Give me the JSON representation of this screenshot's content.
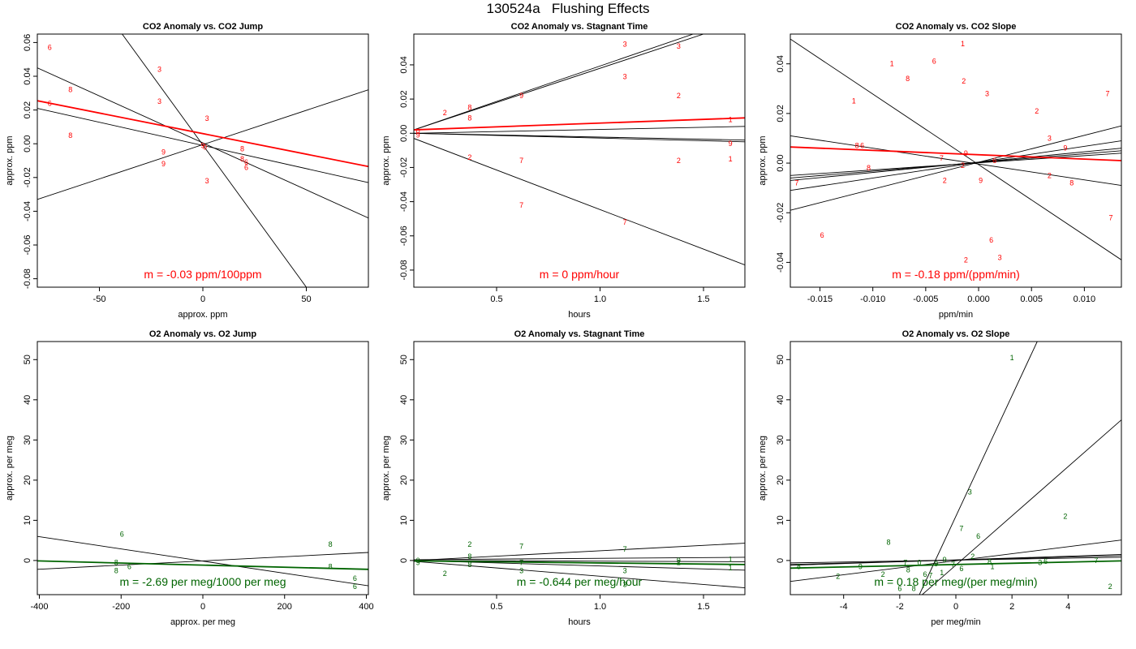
{
  "title": "130524a   Flushing Effects",
  "colors": {
    "co2": "#ff0000",
    "o2": "#006400",
    "frame": "#000000",
    "lines": "#000000"
  },
  "chart_data": [
    {
      "type": "scatter",
      "title": "CO2 Anomaly vs. CO2 Jump",
      "xlabel": "approx. ppm",
      "ylabel": "approx. ppm",
      "xlim": [
        -80,
        80
      ],
      "ylim": [
        -0.085,
        0.065
      ],
      "xticks": [
        -50,
        0,
        50
      ],
      "yticks": [
        -0.08,
        -0.06,
        -0.04,
        -0.02,
        0.0,
        0.02,
        0.04,
        0.06
      ],
      "ytick_labels": [
        "-0.08",
        "-0.06",
        "-0.04",
        "-0.02",
        "0.00",
        "0.02",
        "0.04",
        "0.06"
      ],
      "xtick_labels": [
        "-50",
        "0",
        "50"
      ],
      "annotation": "m = -0.03 ppm/100ppm",
      "color_key": "co2",
      "points": [
        {
          "x": -74,
          "y": 0.057,
          "label": "6"
        },
        {
          "x": -64,
          "y": 0.032,
          "label": "8"
        },
        {
          "x": -74,
          "y": 0.024,
          "label": "6"
        },
        {
          "x": -64,
          "y": 0.005,
          "label": "8"
        },
        {
          "x": -21,
          "y": 0.044,
          "label": "3"
        },
        {
          "x": -21,
          "y": 0.025,
          "label": "3"
        },
        {
          "x": 2,
          "y": 0.015,
          "label": "3"
        },
        {
          "x": -19,
          "y": -0.005,
          "label": "9"
        },
        {
          "x": -19,
          "y": -0.012,
          "label": "9"
        },
        {
          "x": 0,
          "y": -0.001,
          "label": "9"
        },
        {
          "x": 1,
          "y": -0.002,
          "label": "0"
        },
        {
          "x": 2,
          "y": -0.022,
          "label": "3"
        },
        {
          "x": 19,
          "y": -0.003,
          "label": "8"
        },
        {
          "x": 19,
          "y": -0.009,
          "label": "8"
        },
        {
          "x": 21,
          "y": -0.011,
          "label": "6"
        },
        {
          "x": 21,
          "y": -0.014,
          "label": "6"
        }
      ],
      "lines": [
        {
          "x1": -80,
          "y1": 0.045,
          "x2": 80,
          "y2": -0.044
        },
        {
          "x1": -80,
          "y1": 0.021,
          "x2": 80,
          "y2": -0.023
        },
        {
          "x1": -80,
          "y1": -0.033,
          "x2": 80,
          "y2": 0.032
        },
        {
          "x1": -39,
          "y1": 0.065,
          "x2": 50,
          "y2": -0.085
        }
      ],
      "fit": {
        "x1": -80,
        "y1": 0.0255,
        "x2": 80,
        "y2": -0.0135
      }
    },
    {
      "type": "scatter",
      "title": "CO2 Anomaly vs. Stagnant Time",
      "xlabel": "hours",
      "ylabel": "approx. ppm",
      "xlim": [
        0.1,
        1.7
      ],
      "ylim": [
        -0.09,
        0.058
      ],
      "xticks": [
        0.5,
        1.0,
        1.5
      ],
      "yticks": [
        -0.08,
        -0.06,
        -0.04,
        -0.02,
        0.0,
        0.02,
        0.04
      ],
      "ytick_labels": [
        "-0.08",
        "-0.06",
        "-0.04",
        "-0.02",
        "0.00",
        "0.02",
        "0.04"
      ],
      "xtick_labels": [
        "0.5",
        "1.0",
        "1.5"
      ],
      "annotation": "m = 0 ppm/hour",
      "color_key": "co2",
      "points": [
        {
          "x": 0.12,
          "y": 0.001,
          "label": "0"
        },
        {
          "x": 0.12,
          "y": -0.001,
          "label": "9"
        },
        {
          "x": 0.25,
          "y": 0.012,
          "label": "2"
        },
        {
          "x": 0.37,
          "y": 0.015,
          "label": "8"
        },
        {
          "x": 0.37,
          "y": 0.009,
          "label": "8"
        },
        {
          "x": 0.37,
          "y": -0.014,
          "label": "2"
        },
        {
          "x": 0.62,
          "y": 0.022,
          "label": "9"
        },
        {
          "x": 0.62,
          "y": -0.016,
          "label": "7"
        },
        {
          "x": 0.62,
          "y": -0.042,
          "label": "7"
        },
        {
          "x": 1.12,
          "y": 0.052,
          "label": "3"
        },
        {
          "x": 1.12,
          "y": 0.033,
          "label": "3"
        },
        {
          "x": 1.12,
          "y": -0.052,
          "label": "7"
        },
        {
          "x": 1.38,
          "y": 0.051,
          "label": "3"
        },
        {
          "x": 1.38,
          "y": 0.022,
          "label": "2"
        },
        {
          "x": 1.38,
          "y": -0.016,
          "label": "2"
        },
        {
          "x": 1.63,
          "y": 0.008,
          "label": "1"
        },
        {
          "x": 1.63,
          "y": -0.006,
          "label": "9"
        },
        {
          "x": 1.63,
          "y": -0.015,
          "label": "1"
        }
      ],
      "lines": [
        {
          "x1": 0.1,
          "y1": 0.002,
          "x2": 1.45,
          "y2": 0.058
        },
        {
          "x1": 0.1,
          "y1": 0.002,
          "x2": 1.5,
          "y2": 0.058
        },
        {
          "x1": 0.1,
          "y1": 0.0,
          "x2": 1.7,
          "y2": 0.004
        },
        {
          "x1": 0.1,
          "y1": 0.0,
          "x2": 1.7,
          "y2": -0.004
        },
        {
          "x1": 0.1,
          "y1": 0.0,
          "x2": 1.7,
          "y2": -0.005
        },
        {
          "x1": 0.1,
          "y1": -0.003,
          "x2": 1.7,
          "y2": -0.077
        }
      ],
      "fit": {
        "x1": 0.1,
        "y1": 0.002,
        "x2": 1.7,
        "y2": 0.009
      }
    },
    {
      "type": "scatter",
      "title": "CO2 Anomaly vs. CO2 Slope",
      "xlabel": "ppm/min",
      "ylabel": "approx. ppm",
      "xlim": [
        -0.0178,
        0.0135
      ],
      "ylim": [
        -0.05,
        0.052
      ],
      "xticks": [
        -0.015,
        -0.01,
        -0.005,
        0.0,
        0.005,
        0.01
      ],
      "yticks": [
        -0.04,
        -0.02,
        0.0,
        0.02,
        0.04
      ],
      "ytick_labels": [
        "-0.04",
        "-0.02",
        "0.00",
        "0.02",
        "0.04"
      ],
      "xtick_labels": [
        "-0.015",
        "-0.010",
        "-0.005",
        "0.000",
        "0.005",
        "0.010"
      ],
      "annotation": "m = -0.18 ppm/(ppm/min)",
      "color_key": "co2",
      "points": [
        {
          "x": -0.0015,
          "y": 0.048,
          "label": "1"
        },
        {
          "x": -0.0082,
          "y": 0.04,
          "label": "1"
        },
        {
          "x": -0.0042,
          "y": 0.041,
          "label": "6"
        },
        {
          "x": -0.0067,
          "y": 0.034,
          "label": "8"
        },
        {
          "x": -0.0014,
          "y": 0.033,
          "label": "2"
        },
        {
          "x": 0.0008,
          "y": 0.028,
          "label": "3"
        },
        {
          "x": -0.0118,
          "y": 0.025,
          "label": "1"
        },
        {
          "x": 0.0055,
          "y": 0.021,
          "label": "2"
        },
        {
          "x": 0.0122,
          "y": 0.028,
          "label": "7"
        },
        {
          "x": -0.0115,
          "y": 0.007,
          "label": "8"
        },
        {
          "x": -0.011,
          "y": 0.007,
          "label": "6"
        },
        {
          "x": 0.0067,
          "y": 0.01,
          "label": "3"
        },
        {
          "x": 0.0082,
          "y": 0.006,
          "label": "9"
        },
        {
          "x": -0.0035,
          "y": 0.002,
          "label": "7"
        },
        {
          "x": -0.0012,
          "y": 0.004,
          "label": "9"
        },
        {
          "x": -0.0015,
          "y": -0.001,
          "label": "2"
        },
        {
          "x": 0.0015,
          "y": 0.001,
          "label": "6"
        },
        {
          "x": -0.0104,
          "y": -0.002,
          "label": "8"
        },
        {
          "x": -0.0172,
          "y": -0.008,
          "label": "7"
        },
        {
          "x": -0.0032,
          "y": -0.007,
          "label": "2"
        },
        {
          "x": 0.0002,
          "y": -0.007,
          "label": "9"
        },
        {
          "x": 0.0067,
          "y": -0.005,
          "label": "2"
        },
        {
          "x": 0.0088,
          "y": -0.008,
          "label": "8"
        },
        {
          "x": 0.0125,
          "y": -0.022,
          "label": "7"
        },
        {
          "x": -0.0148,
          "y": -0.029,
          "label": "6"
        },
        {
          "x": 0.0012,
          "y": -0.031,
          "label": "6"
        },
        {
          "x": 0.002,
          "y": -0.038,
          "label": "3"
        },
        {
          "x": -0.0012,
          "y": -0.039,
          "label": "2"
        }
      ],
      "lines": [
        {
          "x1": -0.0178,
          "y1": 0.05,
          "x2": 0.0135,
          "y2": -0.039
        },
        {
          "x1": -0.0178,
          "y1": 0.011,
          "x2": 0.0135,
          "y2": -0.009
        },
        {
          "x1": -0.0178,
          "y1": -0.019,
          "x2": 0.0135,
          "y2": 0.015
        },
        {
          "x1": -0.0178,
          "y1": -0.011,
          "x2": 0.0135,
          "y2": 0.009
        },
        {
          "x1": -0.0178,
          "y1": -0.007,
          "x2": 0.0135,
          "y2": 0.006
        },
        {
          "x1": -0.0178,
          "y1": -0.006,
          "x2": 0.0135,
          "y2": 0.005
        },
        {
          "x1": -0.0178,
          "y1": -0.005,
          "x2": 0.0135,
          "y2": 0.004
        }
      ],
      "fit": {
        "x1": -0.0178,
        "y1": 0.0065,
        "x2": 0.0135,
        "y2": 0.001
      }
    },
    {
      "type": "scatter",
      "title": "O2 Anomaly vs. O2 Jump",
      "xlabel": "approx. per meg",
      "ylabel": "approx. per meg",
      "xlim": [
        -405,
        405
      ],
      "ylim": [
        -8.5,
        54.5
      ],
      "xticks": [
        -400,
        -200,
        0,
        200,
        400
      ],
      "yticks": [
        0,
        10,
        20,
        30,
        40,
        50
      ],
      "ytick_labels": [
        "0",
        "10",
        "20",
        "30",
        "40",
        "50"
      ],
      "xtick_labels": [
        "-400",
        "-200",
        "0",
        "200",
        "400"
      ],
      "annotation": "m = -2.69 per meg/1000 per meg",
      "color_key": "o2",
      "points": [
        {
          "x": -198,
          "y": 6.5,
          "label": "6"
        },
        {
          "x": -212,
          "y": -0.5,
          "label": "8"
        },
        {
          "x": -212,
          "y": -2.5,
          "label": "8"
        },
        {
          "x": -180,
          "y": -1.5,
          "label": "6"
        },
        {
          "x": 312,
          "y": 4.0,
          "label": "8"
        },
        {
          "x": 312,
          "y": -1.5,
          "label": "8"
        },
        {
          "x": 372,
          "y": -4.5,
          "label": "6"
        },
        {
          "x": 372,
          "y": -6.5,
          "label": "6"
        }
      ],
      "lines": [
        {
          "x1": -405,
          "y1": 6.0,
          "x2": 405,
          "y2": -6.3
        },
        {
          "x1": -405,
          "y1": -2.2,
          "x2": 405,
          "y2": 2.0
        }
      ],
      "fit": {
        "x1": -405,
        "y1": -0.1,
        "x2": 405,
        "y2": -2.2
      }
    },
    {
      "type": "scatter",
      "title": "O2 Anomaly vs. Stagnant Time",
      "xlabel": "hours",
      "ylabel": "approx. per meg",
      "xlim": [
        0.1,
        1.7
      ],
      "ylim": [
        -8.5,
        54.5
      ],
      "xticks": [
        0.5,
        1.0,
        1.5
      ],
      "yticks": [
        0,
        10,
        20,
        30,
        40,
        50
      ],
      "ytick_labels": [
        "0",
        "10",
        "20",
        "30",
        "40",
        "50"
      ],
      "xtick_labels": [
        "0.5",
        "1.0",
        "1.5"
      ],
      "annotation": "m = -0.644 per meg/hour",
      "color_key": "o2",
      "points": [
        {
          "x": 0.12,
          "y": 0.0,
          "label": "0"
        },
        {
          "x": 0.12,
          "y": -0.5,
          "label": "9"
        },
        {
          "x": 0.37,
          "y": 4.0,
          "label": "2"
        },
        {
          "x": 0.37,
          "y": 1.0,
          "label": "8"
        },
        {
          "x": 0.37,
          "y": -1.0,
          "label": "8"
        },
        {
          "x": 0.25,
          "y": -3.2,
          "label": "2"
        },
        {
          "x": 0.62,
          "y": 3.5,
          "label": "7"
        },
        {
          "x": 0.62,
          "y": -0.5,
          "label": "7"
        },
        {
          "x": 0.62,
          "y": -2.5,
          "label": "3"
        },
        {
          "x": 1.12,
          "y": 2.8,
          "label": "7"
        },
        {
          "x": 1.12,
          "y": -2.5,
          "label": "3"
        },
        {
          "x": 1.12,
          "y": -6.0,
          "label": "3"
        },
        {
          "x": 1.38,
          "y": 0.0,
          "label": "9"
        },
        {
          "x": 1.38,
          "y": -0.5,
          "label": "2"
        },
        {
          "x": 1.63,
          "y": 0.3,
          "label": "1"
        },
        {
          "x": 1.63,
          "y": -1.8,
          "label": "1"
        }
      ],
      "lines": [
        {
          "x1": 0.1,
          "y1": 0.0,
          "x2": 1.7,
          "y2": 4.3
        },
        {
          "x1": 0.1,
          "y1": 0.2,
          "x2": 1.7,
          "y2": 0.8
        },
        {
          "x1": 0.1,
          "y1": 0.0,
          "x2": 1.7,
          "y2": -0.3
        },
        {
          "x1": 0.1,
          "y1": 0.0,
          "x2": 1.7,
          "y2": -1.0
        },
        {
          "x1": 0.1,
          "y1": 0.0,
          "x2": 1.7,
          "y2": -2.4
        },
        {
          "x1": 0.1,
          "y1": -0.2,
          "x2": 1.7,
          "y2": -6.8
        }
      ],
      "fit": {
        "x1": 0.1,
        "y1": -0.1,
        "x2": 1.7,
        "y2": -1.0
      }
    },
    {
      "type": "scatter",
      "title": "O2 Anomaly vs. O2 Slope",
      "xlabel": "per meg/min",
      "ylabel": "approx. per meg",
      "xlim": [
        -5.9,
        5.9
      ],
      "ylim": [
        -8.5,
        54.5
      ],
      "xticks": [
        -4,
        -2,
        0,
        2,
        4
      ],
      "yticks": [
        0,
        10,
        20,
        30,
        40,
        50
      ],
      "ytick_labels": [
        "0",
        "10",
        "20",
        "30",
        "40",
        "50"
      ],
      "xtick_labels": [
        "-4",
        "-2",
        "0",
        "2",
        "4"
      ],
      "annotation": "m = 0.18 per meg/(per meg/min)",
      "color_key": "o2",
      "points": [
        {
          "x": 2.0,
          "y": 50.5,
          "label": "1"
        },
        {
          "x": 0.5,
          "y": 17.0,
          "label": "3"
        },
        {
          "x": 3.9,
          "y": 11.0,
          "label": "2"
        },
        {
          "x": 0.2,
          "y": 8.0,
          "label": "7"
        },
        {
          "x": 0.8,
          "y": 6.0,
          "label": "6"
        },
        {
          "x": -2.4,
          "y": 4.5,
          "label": "8"
        },
        {
          "x": 0.6,
          "y": 1.0,
          "label": "2"
        },
        {
          "x": -5.6,
          "y": -1.5,
          "label": "8"
        },
        {
          "x": -3.4,
          "y": -1.5,
          "label": "9"
        },
        {
          "x": -1.8,
          "y": -0.5,
          "label": "7"
        },
        {
          "x": -1.3,
          "y": -0.5,
          "label": "0"
        },
        {
          "x": -0.4,
          "y": 0.2,
          "label": "9"
        },
        {
          "x": -0.7,
          "y": -0.8,
          "label": "9"
        },
        {
          "x": -1.7,
          "y": -2.3,
          "label": "8"
        },
        {
          "x": -2.6,
          "y": -3.5,
          "label": "2"
        },
        {
          "x": -1.1,
          "y": -3.5,
          "label": "6"
        },
        {
          "x": -0.5,
          "y": -3.0,
          "label": "1"
        },
        {
          "x": -0.1,
          "y": -1.0,
          "label": "7"
        },
        {
          "x": 0.2,
          "y": -2.0,
          "label": "6"
        },
        {
          "x": 1.2,
          "y": -0.3,
          "label": "8"
        },
        {
          "x": 1.3,
          "y": -1.5,
          "label": "1"
        },
        {
          "x": -4.2,
          "y": -4.0,
          "label": "2"
        },
        {
          "x": -0.9,
          "y": -3.8,
          "label": "7"
        },
        {
          "x": 3.0,
          "y": -0.5,
          "label": "3"
        },
        {
          "x": 3.2,
          "y": -0.2,
          "label": "6"
        },
        {
          "x": 5.0,
          "y": 0.0,
          "label": "7"
        },
        {
          "x": 5.5,
          "y": -6.5,
          "label": "2"
        },
        {
          "x": -2.0,
          "y": -7.0,
          "label": "6"
        },
        {
          "x": -1.5,
          "y": -7.0,
          "label": "8"
        }
      ],
      "lines": [
        {
          "x1": -1.3,
          "y1": -8.5,
          "x2": 2.9,
          "y2": 54.5
        },
        {
          "x1": -1.2,
          "y1": -8.5,
          "x2": 5.9,
          "y2": 35.0
        },
        {
          "x1": -5.9,
          "y1": -5.2,
          "x2": 5.9,
          "y2": 5.1
        },
        {
          "x1": -5.9,
          "y1": -1.2,
          "x2": 5.9,
          "y2": 1.5
        },
        {
          "x1": -5.9,
          "y1": -1.0,
          "x2": 5.9,
          "y2": 1.2
        },
        {
          "x1": -5.9,
          "y1": -0.6,
          "x2": 5.9,
          "y2": 0.8
        }
      ],
      "fit": {
        "x1": -5.9,
        "y1": -1.9,
        "x2": 5.9,
        "y2": -0.1
      }
    }
  ]
}
